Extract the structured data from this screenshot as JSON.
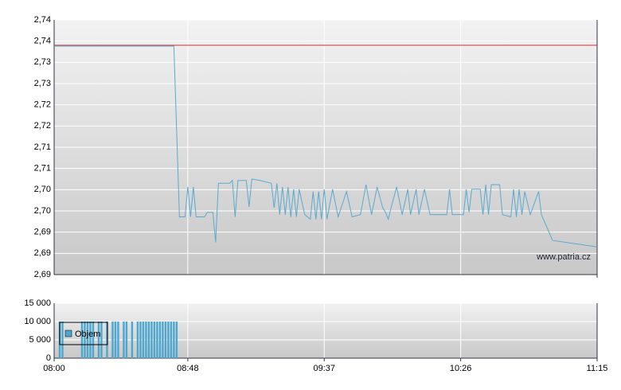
{
  "chart_data": [
    {
      "type": "line",
      "ylim": [
        2.6855,
        2.7407
      ],
      "yticks": [
        {
          "value": 2.6855,
          "label": "2,69"
        },
        {
          "value": 2.6901,
          "label": "2,69"
        },
        {
          "value": 2.6947,
          "label": "2,69"
        },
        {
          "value": 2.6993,
          "label": "2,70"
        },
        {
          "value": 2.7039,
          "label": "2,70"
        },
        {
          "value": 2.7085,
          "label": "2,71"
        },
        {
          "value": 2.7131,
          "label": "2,71"
        },
        {
          "value": 2.7177,
          "label": "2,72"
        },
        {
          "value": 2.7223,
          "label": "2,72"
        },
        {
          "value": 2.7269,
          "label": "2,73"
        },
        {
          "value": 2.7315,
          "label": "2,73"
        },
        {
          "value": 2.7361,
          "label": "2,74"
        },
        {
          "value": 2.7407,
          "label": "2,74"
        }
      ],
      "grid": true,
      "reference_line": {
        "value": 2.7352,
        "color": "#cc3333"
      },
      "watermark": "www.patria.cz",
      "x": [
        "08:00",
        "08:43",
        "08:45",
        "08:47",
        "08:48",
        "08:49",
        "08:50",
        "08:51",
        "08:54",
        "08:55",
        "08:57",
        "08:58",
        "08:59",
        "09:03",
        "09:04",
        "09:05",
        "09:06",
        "09:09",
        "09:10",
        "09:11",
        "09:14",
        "09:18",
        "09:19",
        "09:20",
        "09:21",
        "09:22",
        "09:23",
        "09:24",
        "09:25",
        "09:26",
        "09:27",
        "09:28",
        "09:30",
        "09:32",
        "09:33",
        "09:34",
        "09:35",
        "09:36",
        "09:37",
        "09:38",
        "09:40",
        "09:42",
        "09:45",
        "09:47",
        "09:50",
        "09:52",
        "09:54",
        "09:56",
        "09:58",
        "09:59",
        "10:00",
        "10:01",
        "10:03",
        "10:05",
        "10:07",
        "10:08",
        "10:10",
        "10:11",
        "10:13",
        "10:15",
        "10:18",
        "10:21",
        "10:22",
        "10:23",
        "10:27",
        "10:28",
        "10:29",
        "10:30",
        "10:33",
        "10:34",
        "10:35",
        "10:36",
        "10:37",
        "10:40",
        "10:41",
        "10:44",
        "10:45",
        "10:46",
        "10:47",
        "10:48",
        "10:49",
        "10:51",
        "10:54",
        "10:55",
        "10:59",
        "11:15"
      ],
      "series": [
        {
          "color": "#5aaad0",
          "values": [
            2.735,
            2.735,
            2.698,
            2.698,
            2.7045,
            2.698,
            2.7045,
            2.698,
            2.698,
            2.699,
            2.699,
            2.6925,
            2.7053,
            2.7053,
            2.7059,
            2.698,
            2.7059,
            2.7059,
            2.7002,
            2.7062,
            2.7059,
            2.7053,
            2.7,
            2.7053,
            2.6985,
            2.7045,
            2.6985,
            2.7045,
            2.698,
            2.704,
            2.698,
            2.704,
            2.6985,
            2.6975,
            2.7035,
            2.6975,
            2.7035,
            2.6975,
            2.704,
            2.6975,
            2.704,
            2.698,
            2.7035,
            2.698,
            2.6985,
            2.705,
            2.6985,
            2.7045,
            2.7,
            2.699,
            2.6975,
            2.7,
            2.7045,
            2.6985,
            2.704,
            2.6985,
            2.704,
            2.6985,
            2.704,
            2.6985,
            2.6985,
            2.6985,
            2.704,
            2.6985,
            2.6985,
            2.704,
            2.699,
            2.704,
            2.704,
            2.6985,
            2.705,
            2.6985,
            2.705,
            2.705,
            2.6985,
            2.698,
            2.704,
            2.698,
            2.704,
            2.6985,
            2.7035,
            2.6985,
            2.7035,
            2.6985,
            2.6929,
            2.6915
          ]
        }
      ]
    },
    {
      "type": "bar",
      "xlim": [
        "08:00",
        "11:15"
      ],
      "xticks": [
        "08:00",
        "08:48",
        "09:37",
        "10:26",
        "11:15"
      ],
      "ylim": [
        0,
        15000
      ],
      "yticks": [
        {
          "value": 0,
          "label": "0"
        },
        {
          "value": 5000,
          "label": "5 000"
        },
        {
          "value": 10000,
          "label": "10 000"
        },
        {
          "value": 15000,
          "label": "15 000"
        }
      ],
      "grid": true,
      "legend": "top-left",
      "x": [
        "08:02",
        "08:03",
        "08:10",
        "08:11",
        "08:12",
        "08:13",
        "08:14",
        "08:16",
        "08:17",
        "08:19",
        "08:21",
        "08:22",
        "08:23",
        "08:25",
        "08:26",
        "08:28",
        "08:30",
        "08:31",
        "08:32",
        "08:33",
        "08:34",
        "08:35",
        "08:36",
        "08:37",
        "08:38",
        "08:39",
        "08:40",
        "08:41",
        "08:42",
        "08:43",
        "08:44"
      ],
      "series": [
        {
          "name": "Objem",
          "color": "#4aa8d0",
          "values": [
            10000,
            10000,
            10000,
            10000,
            10000,
            10000,
            10000,
            10000,
            10000,
            10000,
            10000,
            10000,
            10000,
            10000,
            10000,
            10000,
            10000,
            10000,
            10000,
            10000,
            10000,
            10000,
            10000,
            10000,
            10000,
            10000,
            10000,
            10000,
            10000,
            10000,
            10000
          ]
        }
      ]
    }
  ]
}
